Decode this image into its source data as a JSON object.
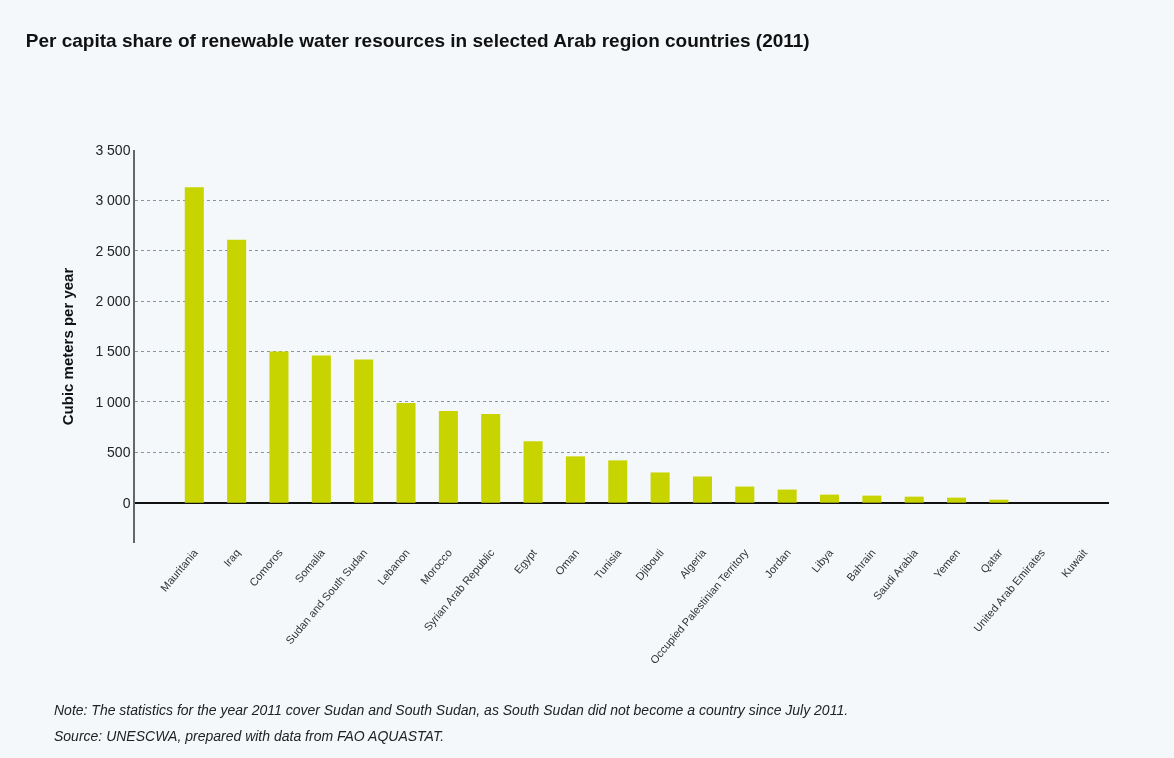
{
  "chart_data": {
    "type": "bar",
    "title": "Per capita share of renewable water resources in selected Arab region countries (2011)",
    "ylabel": "Cubic meters per year",
    "categories": [
      "Mauritania",
      "Iraq",
      "Comoros",
      "Somalia",
      "Sudan and South Sudan",
      "Lebanon",
      "Morocco",
      "Syrian Arab Republic",
      "Egypt",
      "Oman",
      "Tunisia",
      "Djibouti",
      "Algeria",
      "Occupied Palestinian Territory",
      "Jordan",
      "Libya",
      "Bahrain",
      "Saudi Arabia",
      "Yemen",
      "Qatar",
      "United Arab Emirates",
      "Kuwait"
    ],
    "values": [
      3130,
      2610,
      1500,
      1460,
      1420,
      990,
      910,
      880,
      610,
      460,
      420,
      300,
      260,
      160,
      130,
      80,
      70,
      60,
      50,
      30,
      0,
      0
    ],
    "color": "#c8d400",
    "ylim": [
      -400,
      3500
    ],
    "yticks": [
      0,
      500,
      {
        "value": 1000,
        "label": "1 000"
      },
      {
        "value": 1500,
        "label": "1 500"
      },
      {
        "value": 2000,
        "label": "2 000"
      },
      {
        "value": 2500,
        "label": "2 500"
      },
      {
        "value": 3000,
        "label": "3 000"
      },
      {
        "value": 3500,
        "label": "3 500"
      }
    ],
    "grid": "y",
    "annotations": [
      "Note: The statistics for the year 2011 cover Sudan and South Sudan, as South Sudan did not become a country since July 2011.",
      "Source: UNESCWA, prepared with data from FAO AQUASTAT."
    ]
  }
}
